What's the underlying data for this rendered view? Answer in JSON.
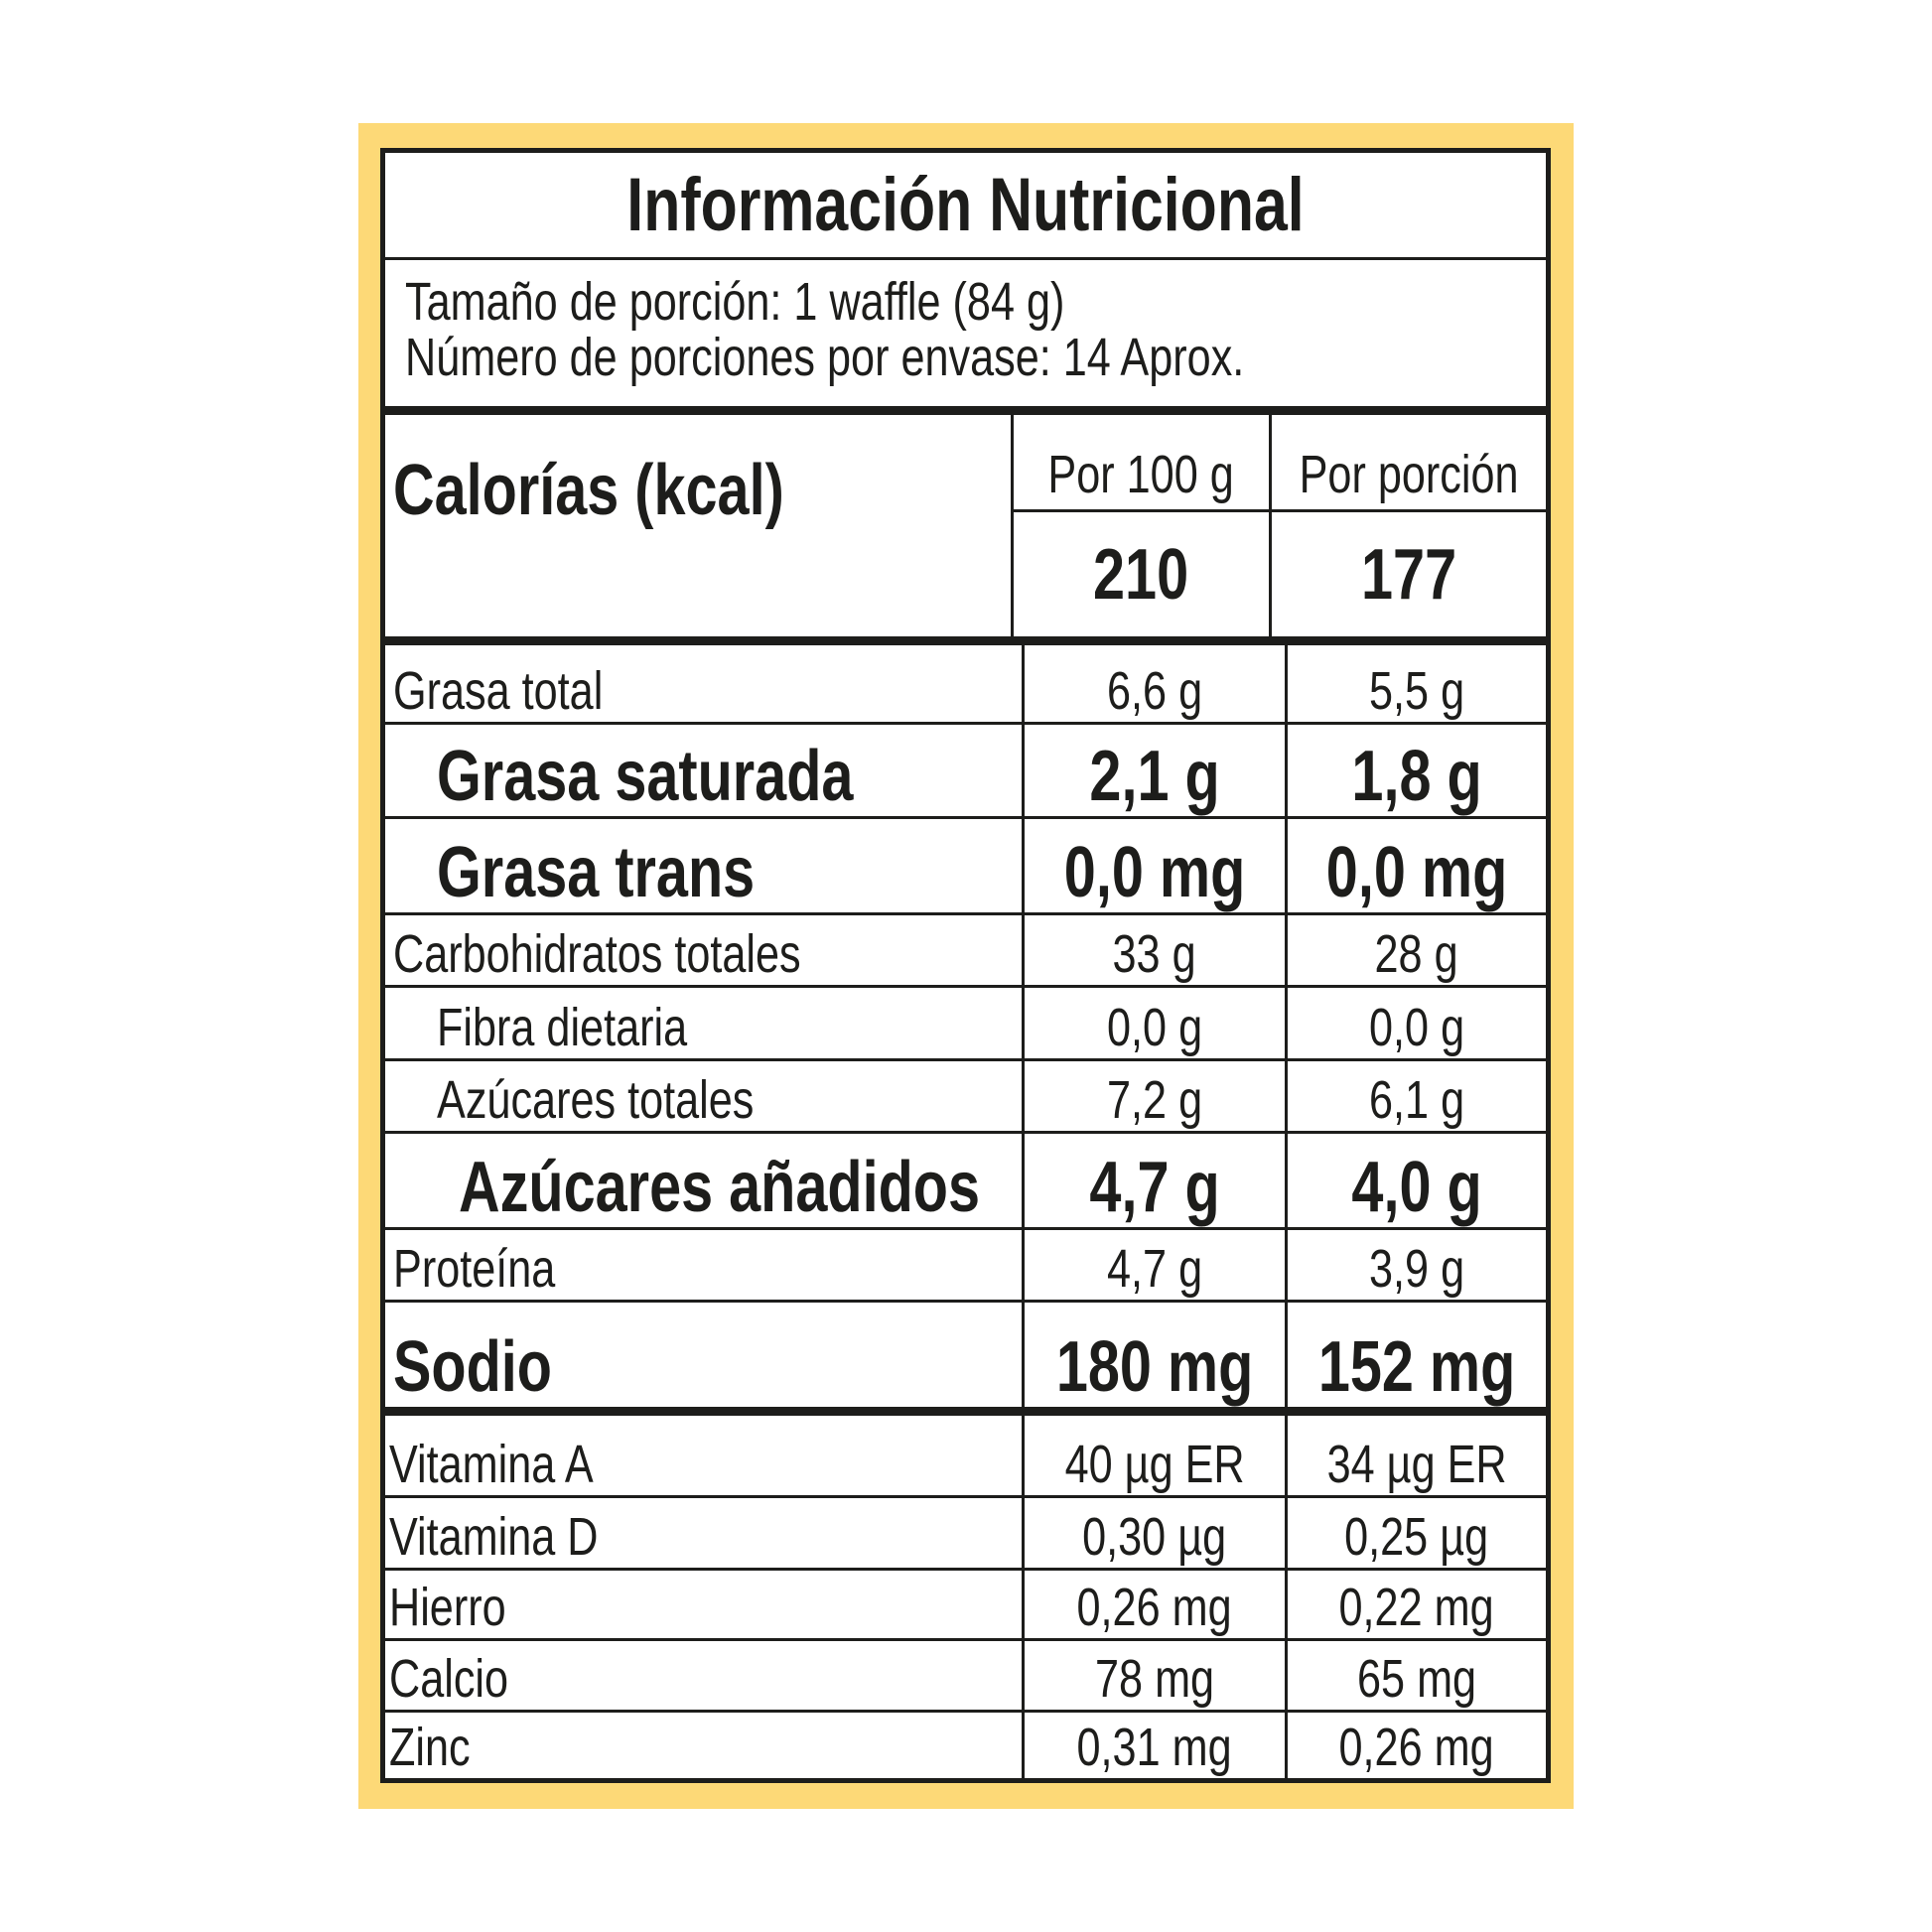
{
  "title": "Información Nutricional",
  "serving_size": "Tamaño de porción: 1 waffle (84 g)",
  "servings_per_container": "Número de porciones por envase: 14 Aprox.",
  "calories": {
    "label": "Calorías (kcal)",
    "col1_header": "Por 100 g",
    "col2_header": "Por porción",
    "per_100g": "210",
    "per_serving": "177"
  },
  "nutrients": [
    {
      "name": "Grasa total",
      "per_100g": "6,6 g",
      "per_serving": "5,5 g"
    },
    {
      "name": "Grasa saturada",
      "per_100g": "2,1 g",
      "per_serving": "1,8 g"
    },
    {
      "name": "Grasa trans",
      "per_100g": "0,0 mg",
      "per_serving": "0,0 mg"
    },
    {
      "name": "Carbohidratos totales",
      "per_100g": "33 g",
      "per_serving": "28 g"
    },
    {
      "name": "Fibra dietaria",
      "per_100g": "0,0 g",
      "per_serving": "0,0 g"
    },
    {
      "name": "Azúcares totales",
      "per_100g": "7,2 g",
      "per_serving": "6,1 g"
    },
    {
      "name": "Azúcares añadidos",
      "per_100g": "4,7 g",
      "per_serving": "4,0 g"
    },
    {
      "name": "Proteína",
      "per_100g": "4,7 g",
      "per_serving": "3,9 g"
    },
    {
      "name": "Sodio",
      "per_100g": "180 mg",
      "per_serving": "152 mg"
    }
  ],
  "micronutrients": [
    {
      "name": "Vitamina A",
      "per_100g": "40 µg ER",
      "per_serving": "34 µg ER"
    },
    {
      "name": "Vitamina D",
      "per_100g": "0,30 µg",
      "per_serving": "0,25 µg"
    },
    {
      "name": "Hierro",
      "per_100g": "0,26 mg",
      "per_serving": "0,22 mg"
    },
    {
      "name": "Calcio",
      "per_100g": "78 mg",
      "per_serving": "65 mg"
    },
    {
      "name": "Zinc",
      "per_100g": "0,31 mg",
      "per_serving": "0,26 mg"
    }
  ],
  "colors": {
    "frame": "#fdd977",
    "ink": "#1d1d1b"
  }
}
